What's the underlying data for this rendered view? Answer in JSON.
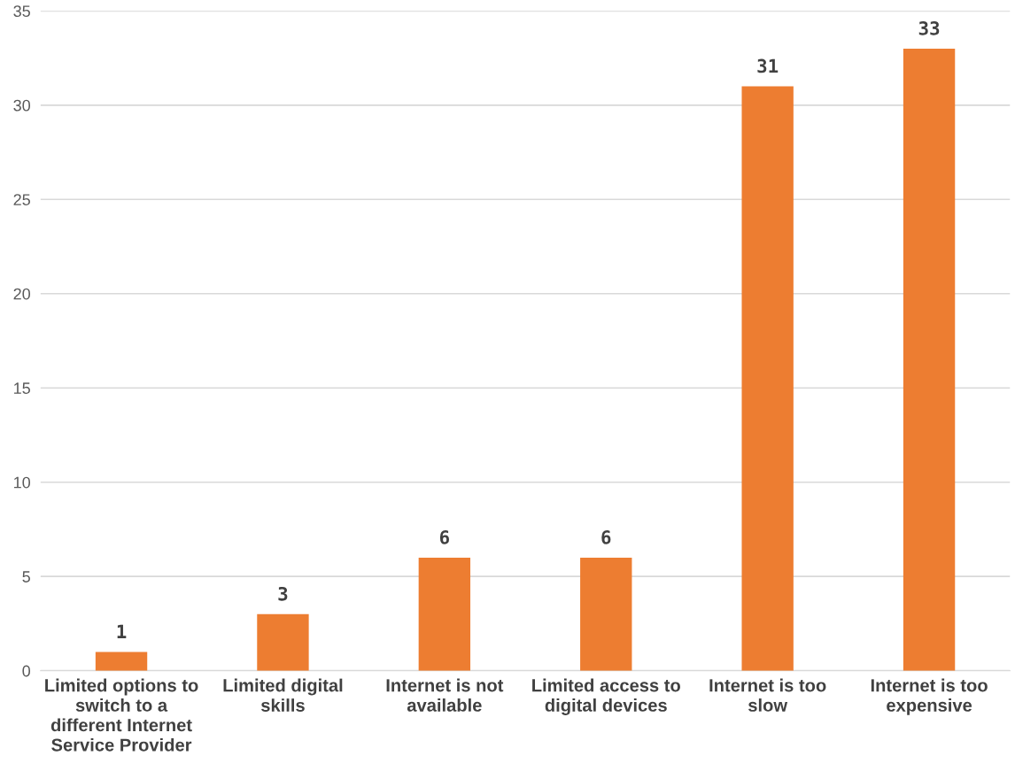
{
  "chart_data": {
    "type": "bar",
    "categories": [
      "Limited options to switch to a different Internet Service Provider",
      "Limited digital skills",
      "Internet is not available",
      "Limited access to digital devices",
      "Internet is too slow",
      "Internet is too expensive"
    ],
    "values": [
      1,
      3,
      6,
      6,
      31,
      33
    ],
    "color": "#ed7d31",
    "ylim": [
      0,
      35
    ],
    "yticks": [
      0,
      5,
      10,
      15,
      20,
      25,
      30,
      35
    ],
    "grid": "y",
    "data_labels": true
  }
}
